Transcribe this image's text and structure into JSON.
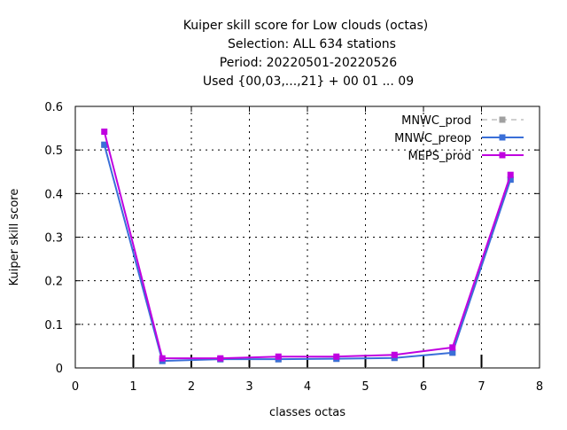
{
  "chart_data": {
    "type": "line",
    "title_lines": [
      "Kuiper skill score  for Low clouds (octas)",
      "Selection: ALL    634 stations",
      "Period: 20220501-20220526",
      "Used {00,03,...,21} + 00 01 ... 09"
    ],
    "xlabel": "classes octas",
    "ylabel": "Kuiper skill score",
    "xlim": [
      0,
      8
    ],
    "ylim": [
      0,
      0.6
    ],
    "xticks": [
      "0",
      "1",
      "2",
      "3",
      "4",
      "5",
      "6",
      "7",
      "8"
    ],
    "yticks": [
      "0",
      "0.1",
      "0.2",
      "0.3",
      "0.4",
      "0.5",
      "0.6"
    ],
    "grid": true,
    "legend_position": "top-right",
    "x": [
      0.5,
      1.5,
      2.5,
      3.5,
      4.5,
      5.5,
      6.5,
      7.5
    ],
    "series": [
      {
        "name": "MNWC_prod",
        "color": "#a0a0a0",
        "dash": true,
        "values": [
          0.512,
          0.016,
          0.02,
          0.02,
          0.021,
          0.023,
          0.035,
          0.432
        ]
      },
      {
        "name": "MNWC_preop",
        "color": "#3a6fd8",
        "dash": false,
        "values": [
          0.512,
          0.016,
          0.02,
          0.02,
          0.021,
          0.023,
          0.035,
          0.432
        ]
      },
      {
        "name": "MEPS_prod",
        "color": "#c000e0",
        "dash": false,
        "values": [
          0.542,
          0.022,
          0.022,
          0.026,
          0.026,
          0.03,
          0.047,
          0.443
        ]
      }
    ]
  }
}
